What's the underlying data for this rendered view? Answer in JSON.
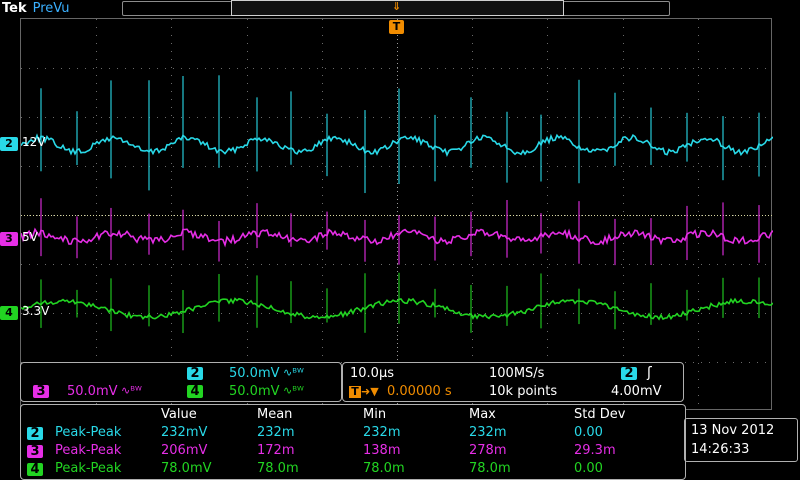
{
  "header": {
    "brand": "Tek",
    "mode": "PreVu"
  },
  "trigger_marker": {
    "label": "T"
  },
  "channels": [
    {
      "id": "2",
      "rail": "12V",
      "color": "#29d9e8"
    },
    {
      "id": "3",
      "rail": "5V",
      "color": "#e62ee6"
    },
    {
      "id": "4",
      "rail": "3.3V",
      "color": "#22d422"
    }
  ],
  "vertical": {
    "ch2": {
      "badge": "2",
      "scale": "50.0mV",
      "coupling": "∿ᴮᵂ"
    },
    "ch3": {
      "badge": "3",
      "scale": "50.0mV",
      "coupling": "∿ᴮᵂ"
    },
    "ch4": {
      "badge": "4",
      "scale": "50.0mV",
      "coupling": "∿ᴮᵂ"
    }
  },
  "timebase": {
    "scale": "10.0µs",
    "sample_rate": "100MS/s",
    "trigger_position": "0.00000 s",
    "record_length": "10k points",
    "trigger_source": "2",
    "trigger_level": "4.00mV",
    "trigger_slope": "ʃ"
  },
  "measurements": {
    "headers": [
      "Value",
      "Mean",
      "Min",
      "Max",
      "Std Dev"
    ],
    "rows": [
      {
        "ch": "2",
        "type": "Peak-Peak",
        "value": "232mV",
        "mean": "232m",
        "min": "232m",
        "max": "232m",
        "std": "0.00",
        "color": "#29d9e8"
      },
      {
        "ch": "3",
        "type": "Peak-Peak",
        "value": "206mV",
        "mean": "172m",
        "min": "138m",
        "max": "278m",
        "std": "29.3m",
        "color": "#e62ee6"
      },
      {
        "ch": "4",
        "type": "Peak-Peak",
        "value": "78.0mV",
        "mean": "78.0m",
        "min": "78.0m",
        "max": "78.0m",
        "std": "0.00",
        "color": "#22d422"
      }
    ]
  },
  "datetime": {
    "date": "13 Nov 2012",
    "time": "14:26:33"
  },
  "colors": {
    "ch2": "#29d9e8",
    "ch3": "#e62ee6",
    "ch4": "#22d422",
    "trigger": "#f08c00",
    "grid": "#6a6a6a"
  }
}
